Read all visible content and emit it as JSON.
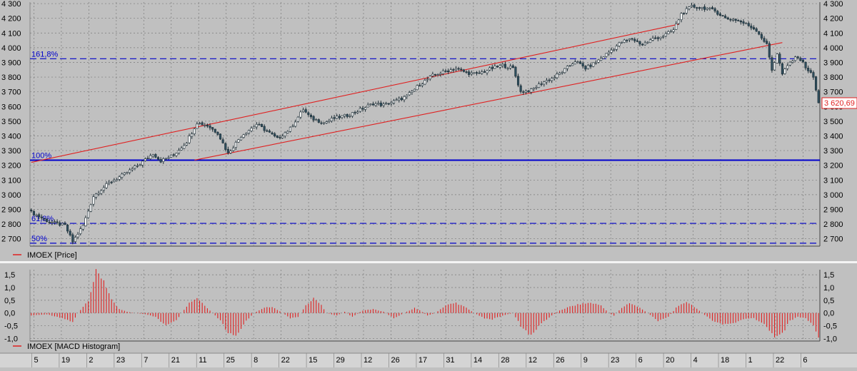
{
  "colors": {
    "background": "#c0c0c0",
    "grid": "#7a7a7a",
    "candle_up": "#ffffff",
    "candle_down": "#2f4f5f",
    "channel_line": "#e02020",
    "fib_line": "#0000cc",
    "histogram": "#e02020",
    "last_price_label": "#e02020"
  },
  "chart_data": [
    {
      "type": "candlestick",
      "legend": "IMOEX [Price]",
      "ylim": [
        2650,
        4310
      ],
      "yticks": [
        2700,
        2800,
        2900,
        3000,
        3100,
        3200,
        3300,
        3400,
        3500,
        3600,
        3700,
        3800,
        3900,
        4000,
        4100,
        4200,
        4300
      ],
      "ytick_labels": [
        "2 700",
        "2 800",
        "2 900",
        "3 000",
        "3 100",
        "3 200",
        "3 300",
        "3 400",
        "3 500",
        "3 600",
        "3 700",
        "3 800",
        "3 900",
        "4 000",
        "4 100",
        "4 200",
        "4 300"
      ],
      "grid": true,
      "last_price": 3620.69,
      "last_price_label": "3 620,69",
      "close_path": [
        [
          0,
          2880
        ],
        [
          7,
          2815
        ],
        [
          13,
          2790
        ],
        [
          16,
          2680
        ],
        [
          20,
          2790
        ],
        [
          24,
          2990
        ],
        [
          30,
          3080
        ],
        [
          36,
          3140
        ],
        [
          42,
          3210
        ],
        [
          47,
          3280
        ],
        [
          50,
          3230
        ],
        [
          55,
          3270
        ],
        [
          60,
          3360
        ],
        [
          64,
          3490
        ],
        [
          68,
          3470
        ],
        [
          72,
          3420
        ],
        [
          76,
          3280
        ],
        [
          81,
          3400
        ],
        [
          87,
          3480
        ],
        [
          92,
          3420
        ],
        [
          95,
          3380
        ],
        [
          100,
          3450
        ],
        [
          105,
          3580
        ],
        [
          108,
          3520
        ],
        [
          113,
          3490
        ],
        [
          117,
          3520
        ],
        [
          122,
          3540
        ],
        [
          126,
          3570
        ],
        [
          132,
          3620
        ],
        [
          136,
          3610
        ],
        [
          141,
          3640
        ],
        [
          145,
          3670
        ],
        [
          150,
          3750
        ],
        [
          155,
          3810
        ],
        [
          160,
          3840
        ],
        [
          164,
          3860
        ],
        [
          168,
          3830
        ],
        [
          172,
          3820
        ],
        [
          178,
          3860
        ],
        [
          182,
          3880
        ],
        [
          186,
          3860
        ],
        [
          189,
          3700
        ],
        [
          193,
          3710
        ],
        [
          197,
          3760
        ],
        [
          202,
          3800
        ],
        [
          206,
          3850
        ],
        [
          210,
          3910
        ],
        [
          214,
          3860
        ],
        [
          218,
          3900
        ],
        [
          223,
          3970
        ],
        [
          228,
          4040
        ],
        [
          232,
          4060
        ],
        [
          236,
          4020
        ],
        [
          240,
          4060
        ],
        [
          244,
          4080
        ],
        [
          248,
          4120
        ],
        [
          251,
          4230
        ],
        [
          255,
          4280
        ],
        [
          260,
          4270
        ],
        [
          264,
          4250
        ],
        [
          268,
          4200
        ],
        [
          272,
          4190
        ],
        [
          276,
          4160
        ],
        [
          280,
          4120
        ],
        [
          284,
          4020
        ],
        [
          286,
          3850
        ],
        [
          288,
          3960
        ],
        [
          290,
          3820
        ],
        [
          293,
          3900
        ],
        [
          296,
          3940
        ],
        [
          299,
          3870
        ],
        [
          302,
          3800
        ],
        [
          304,
          3620.69
        ]
      ],
      "channel_upper": [
        [
          0,
          3220
        ],
        [
          250,
          4160
        ]
      ],
      "channel_lower": [
        [
          63,
          3235
        ],
        [
          290,
          4035
        ]
      ],
      "fib_levels": [
        {
          "label": "161,8%",
          "value": 3925,
          "style": "dashed"
        },
        {
          "label": "100%",
          "value": 3235,
          "style": "solid"
        },
        {
          "label": "61,8%",
          "value": 2805,
          "style": "dashed"
        },
        {
          "label": "50%",
          "value": 2670,
          "style": "dashed"
        }
      ]
    },
    {
      "type": "histogram",
      "legend": "IMOEX [MACD Histogram]",
      "ylim": [
        -1.1,
        1.7
      ],
      "yticks": [
        1.5,
        1.0,
        0.5,
        0.0,
        -0.5,
        -1.0
      ],
      "ytick_labels": [
        "1,5",
        "1,0",
        "0,5",
        "0,0",
        "-0,5",
        "-1,0"
      ],
      "grid": true,
      "shape": [
        [
          0,
          -0.1
        ],
        [
          6,
          -0.05
        ],
        [
          12,
          -0.2
        ],
        [
          16,
          -0.35
        ],
        [
          18,
          0.0
        ],
        [
          22,
          0.5
        ],
        [
          25,
          1.6
        ],
        [
          28,
          1.3
        ],
        [
          31,
          0.5
        ],
        [
          34,
          0.15
        ],
        [
          37,
          0.05
        ],
        [
          40,
          0.0
        ],
        [
          44,
          -0.05
        ],
        [
          48,
          -0.15
        ],
        [
          52,
          -0.5
        ],
        [
          56,
          -0.3
        ],
        [
          58,
          0.0
        ],
        [
          61,
          0.4
        ],
        [
          64,
          0.6
        ],
        [
          67,
          0.3
        ],
        [
          70,
          0.0
        ],
        [
          73,
          -0.3
        ],
        [
          76,
          -0.8
        ],
        [
          79,
          -0.95
        ],
        [
          83,
          -0.3
        ],
        [
          86,
          0.0
        ],
        [
          90,
          0.2
        ],
        [
          93,
          0.25
        ],
        [
          97,
          0.0
        ],
        [
          100,
          -0.2
        ],
        [
          103,
          -0.15
        ],
        [
          106,
          0.3
        ],
        [
          109,
          0.6
        ],
        [
          112,
          0.3
        ],
        [
          114,
          0.0
        ],
        [
          118,
          -0.1
        ],
        [
          121,
          0.05
        ],
        [
          124,
          -0.15
        ],
        [
          128,
          0.1
        ],
        [
          132,
          0.15
        ],
        [
          136,
          0.05
        ],
        [
          140,
          -0.2
        ],
        [
          144,
          0.0
        ],
        [
          148,
          0.2
        ],
        [
          150,
          0.1
        ],
        [
          153,
          -0.1
        ],
        [
          156,
          0.0
        ],
        [
          160,
          0.3
        ],
        [
          164,
          0.4
        ],
        [
          168,
          0.2
        ],
        [
          171,
          0.0
        ],
        [
          175,
          -0.2
        ],
        [
          178,
          -0.25
        ],
        [
          182,
          -0.1
        ],
        [
          186,
          0.0
        ],
        [
          189,
          -0.5
        ],
        [
          193,
          -0.9
        ],
        [
          197,
          -0.4
        ],
        [
          201,
          -0.1
        ],
        [
          204,
          0.1
        ],
        [
          208,
          0.25
        ],
        [
          212,
          0.35
        ],
        [
          216,
          0.4
        ],
        [
          220,
          0.3
        ],
        [
          223,
          0.0
        ],
        [
          225,
          -0.1
        ],
        [
          228,
          0.2
        ],
        [
          231,
          0.4
        ],
        [
          235,
          0.2
        ],
        [
          238,
          0.0
        ],
        [
          242,
          -0.3
        ],
        [
          246,
          -0.15
        ],
        [
          249,
          0.2
        ],
        [
          253,
          0.45
        ],
        [
          256,
          0.25
        ],
        [
          259,
          0.0
        ],
        [
          263,
          -0.3
        ],
        [
          267,
          -0.45
        ],
        [
          271,
          -0.4
        ],
        [
          275,
          -0.25
        ],
        [
          279,
          -0.2
        ],
        [
          283,
          -0.45
        ],
        [
          287,
          -0.9
        ],
        [
          290,
          -0.8
        ],
        [
          293,
          -0.3
        ],
        [
          296,
          -0.15
        ],
        [
          299,
          -0.2
        ],
        [
          302,
          -0.5
        ],
        [
          304,
          -0.9
        ]
      ],
      "n_bars": 305
    }
  ],
  "x_axis": {
    "labels": [
      "5",
      "19",
      "2",
      "23",
      "7",
      "21",
      "11",
      "25",
      "8",
      "22",
      "15",
      "29",
      "12",
      "26",
      "17",
      "31",
      "14",
      "28",
      "12",
      "26",
      "9",
      "23",
      "6",
      "20",
      "4",
      "18",
      "1",
      "22",
      "6"
    ]
  }
}
